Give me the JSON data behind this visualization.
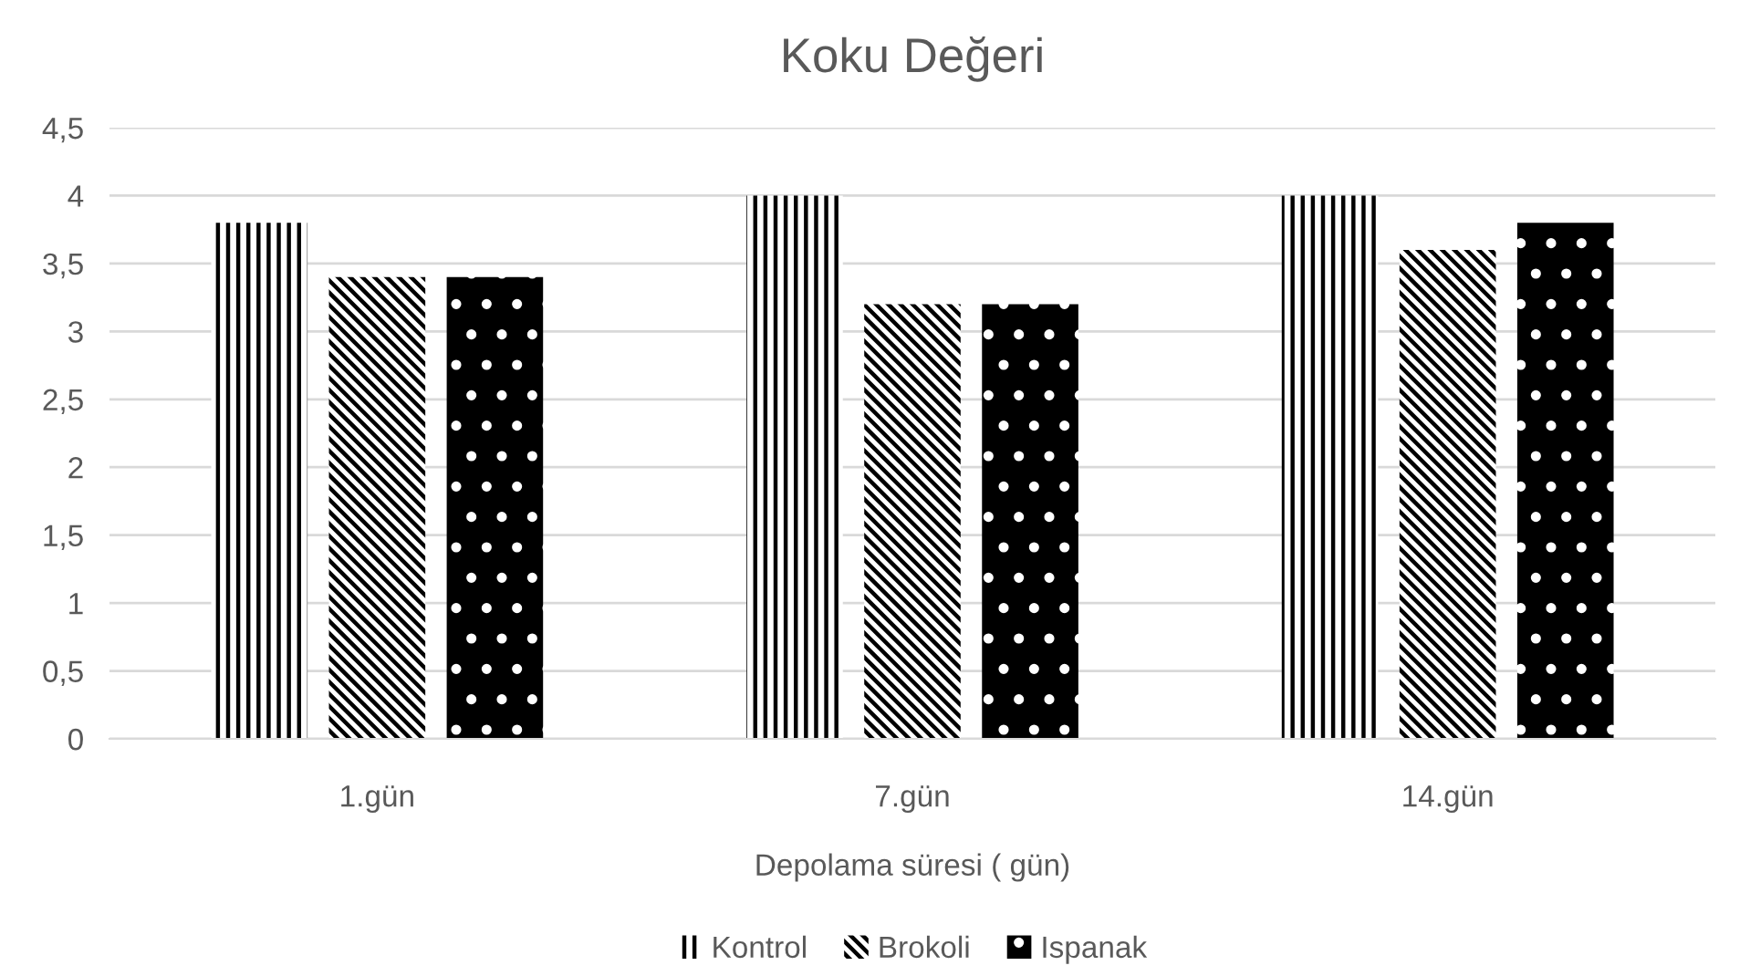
{
  "chart_data": {
    "type": "bar",
    "title": "Koku Değeri",
    "xlabel": "Depolama süresi ( gün)",
    "categories": [
      "1.gün",
      "7.gün",
      "14.gün"
    ],
    "series": [
      {
        "name": "Kontrol",
        "color": "#000000",
        "values": [
          3.8,
          4,
          4
        ]
      },
      {
        "name": "Brokoli",
        "color": "#000000",
        "values": [
          3.4,
          3.2,
          3.6
        ]
      },
      {
        "name": "Ispanak",
        "color": "#000000",
        "values": [
          3.4,
          3.2,
          3.8
        ]
      }
    ],
    "ylim": [
      0,
      4.5
    ],
    "yticks": [
      0,
      {
        "value": 0.5,
        "label": "0,5"
      },
      1,
      {
        "value": 1.5,
        "label": "1,5"
      },
      2,
      {
        "value": 2.5,
        "label": "2,5"
      },
      3,
      {
        "value": 3.5,
        "label": "3,5"
      },
      4,
      {
        "value": 4.5,
        "label": "4,5"
      }
    ],
    "grid": "y",
    "legend": "bottom"
  }
}
